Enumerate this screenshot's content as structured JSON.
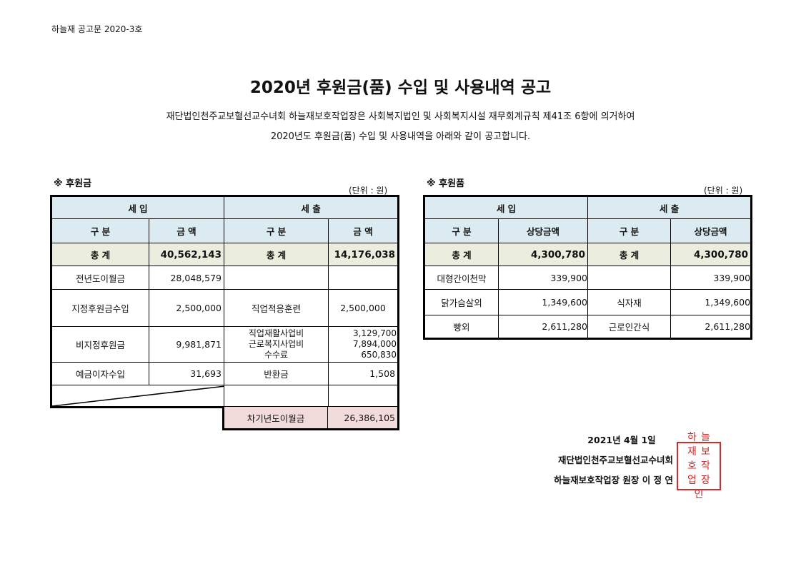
{
  "doc_number": "하늘재 공고문 2020-3호",
  "title": "2020년 후원금(품) 수입 및 사용내역 공고",
  "intro_line1": "재단법인천주교보혈선교수녀회 하늘재보호작업장은 사회복지법인 및 사회복지시설 재무회계규칙  제41조 6항에 의거하여",
  "intro_line2": "2020년도 후원금(품) 수입 및 사용내역을 아래와 같이 공고합니다.",
  "money": {
    "section_title": "※ 후원금",
    "unit": "(단위 : 원)",
    "income_header": "세        입",
    "expense_header": "세        출",
    "col_category": "구   분",
    "col_amount": "금   액",
    "total_label": "총   계",
    "income_total": "40,562,143",
    "expense_total": "14,176,038",
    "rows": [
      {
        "in_label": "전년도이월금",
        "in_amount": "28,048,579",
        "out_label": "",
        "out_amount": ""
      },
      {
        "in_label": "지정후원금수입",
        "in_amount": "2,500,000",
        "out_label": "직업적응훈련",
        "out_amount": "2,500,000"
      },
      {
        "in_label": "비지정후원금",
        "in_amount": "9,981,871",
        "out_label": "직업재활사업비\n근로복지사업비\n수수료",
        "out_amount": "3,129,700\n7,894,000\n650,830"
      },
      {
        "in_label": "예금이자수입",
        "in_amount": "31,693",
        "out_label": "반환금",
        "out_amount": "1,508"
      }
    ],
    "carryover_label": "차기년도이월금",
    "carryover_amount": "26,386,105"
  },
  "goods": {
    "section_title": "※ 후원품",
    "unit": "(단위 : 원)",
    "income_header": "세        입",
    "expense_header": "세        출",
    "col_category": "구   분",
    "col_amount": "상당금액",
    "total_label": "총   계",
    "income_total": "4,300,780",
    "expense_total": "4,300,780",
    "rows": [
      {
        "in_label": "대형간이천막",
        "in_amount": "339,900",
        "out_label": "",
        "out_amount": "339,900"
      },
      {
        "in_label": "닭가슴살외",
        "in_amount": "1,349,600",
        "out_label": "식자재",
        "out_amount": "1,349,600"
      },
      {
        "in_label": "빵외",
        "in_amount": "2,611,280",
        "out_label": "근로인간식",
        "out_amount": "2,611,280"
      }
    ]
  },
  "signature": {
    "date": "2021년 4월 1일",
    "org": "재단법인천주교보혈선교수녀회",
    "signer": "하늘재보호작업장 원장 이 정 연"
  },
  "stamp_text": "하늘재보호작업장원장인",
  "colors": {
    "header_bg": "#dcebf1",
    "total_bg": "#ebeedf",
    "carryover_bg": "#f2dcdb",
    "stamp": "#d52a2a"
  }
}
